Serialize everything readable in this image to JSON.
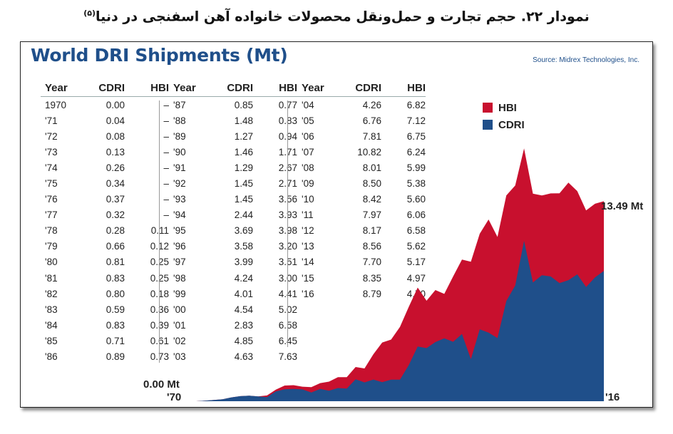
{
  "caption": {
    "text": "نمودار ۲۲. حجم تجارت و حمل‌ونقل محصولات خانواده آهن اسفنجی در دنیا",
    "note": "(۵)"
  },
  "title": "World DRI Shipments (Mt)",
  "source": "Source: Midrex Technologies, Inc.",
  "table": {
    "headers": {
      "year": "Year",
      "cdri": "CDRI",
      "hbi": "HBI"
    },
    "rows": [
      [
        "1970",
        "0.00",
        "–"
      ],
      [
        "'71",
        "0.04",
        "–"
      ],
      [
        "'72",
        "0.08",
        "–"
      ],
      [
        "'73",
        "0.13",
        "–"
      ],
      [
        "'74",
        "0.26",
        "–"
      ],
      [
        "'75",
        "0.34",
        "–"
      ],
      [
        "'76",
        "0.37",
        "–"
      ],
      [
        "'77",
        "0.32",
        "–"
      ],
      [
        "'78",
        "0.28",
        "0.11"
      ],
      [
        "'79",
        "0.66",
        "0.12"
      ],
      [
        "'80",
        "0.81",
        "0.25"
      ],
      [
        "'81",
        "0.83",
        "0.25"
      ],
      [
        "'82",
        "0.80",
        "0.18"
      ],
      [
        "'83",
        "0.59",
        "0.36"
      ],
      [
        "'84",
        "0.83",
        "0.39"
      ],
      [
        "'85",
        "0.71",
        "0.61"
      ],
      [
        "'86",
        "0.89",
        "0.73"
      ],
      [
        "'87",
        "0.85",
        "0.77"
      ],
      [
        "'88",
        "1.48",
        "0.83"
      ],
      [
        "'89",
        "1.27",
        "0.94"
      ],
      [
        "'90",
        "1.46",
        "1.71"
      ],
      [
        "'91",
        "1.29",
        "2.67"
      ],
      [
        "'92",
        "1.45",
        "2.71"
      ],
      [
        "'93",
        "1.45",
        "3.56"
      ],
      [
        "'94",
        "2.44",
        "3.93"
      ],
      [
        "'95",
        "3.69",
        "3.98"
      ],
      [
        "'96",
        "3.58",
        "3.20"
      ],
      [
        "'97",
        "3.99",
        "3.51"
      ],
      [
        "'98",
        "4.24",
        "3.00"
      ],
      [
        "'99",
        "4.01",
        "4.41"
      ],
      [
        "'00",
        "4.54",
        "5.02"
      ],
      [
        "'01",
        "2.83",
        "6.58"
      ],
      [
        "'02",
        "4.85",
        "6.45"
      ],
      [
        "'03",
        "4.63",
        "7.63"
      ],
      [
        "'04",
        "4.26",
        "6.82"
      ],
      [
        "'05",
        "6.76",
        "7.12"
      ],
      [
        "'06",
        "7.81",
        "6.75"
      ],
      [
        "'07",
        "10.82",
        "6.24"
      ],
      [
        "'08",
        "8.01",
        "5.99"
      ],
      [
        "'09",
        "8.50",
        "5.38"
      ],
      [
        "'10",
        "8.42",
        "5.60"
      ],
      [
        "'11",
        "7.97",
        "6.06"
      ],
      [
        "'12",
        "8.17",
        "6.58"
      ],
      [
        "'13",
        "8.56",
        "5.62"
      ],
      [
        "'14",
        "7.70",
        "5.17"
      ],
      [
        "'15",
        "8.35",
        "4.97"
      ],
      [
        "'16",
        "8.79",
        "4.70"
      ]
    ]
  },
  "legend": [
    {
      "label": "HBI",
      "color": "#c8102e"
    },
    {
      "label": "CDRI",
      "color": "#1f4f8a"
    }
  ],
  "annotations": {
    "start_value": "0.00 Mt",
    "start_year": "'70",
    "end_value": "13.49 Mt",
    "end_year": "'16"
  },
  "chart_data": {
    "type": "area",
    "stacked": true,
    "x": [
      1970,
      1971,
      1972,
      1973,
      1974,
      1975,
      1976,
      1977,
      1978,
      1979,
      1980,
      1981,
      1982,
      1983,
      1984,
      1985,
      1986,
      1987,
      1988,
      1989,
      1990,
      1991,
      1992,
      1993,
      1994,
      1995,
      1996,
      1997,
      1998,
      1999,
      2000,
      2001,
      2002,
      2003,
      2004,
      2005,
      2006,
      2007,
      2008,
      2009,
      2010,
      2011,
      2012,
      2013,
      2014,
      2015,
      2016
    ],
    "series": [
      {
        "name": "CDRI",
        "color": "#1f4f8a",
        "values": [
          0.0,
          0.04,
          0.08,
          0.13,
          0.26,
          0.34,
          0.37,
          0.32,
          0.28,
          0.66,
          0.81,
          0.83,
          0.8,
          0.59,
          0.83,
          0.71,
          0.89,
          0.85,
          1.48,
          1.27,
          1.46,
          1.29,
          1.45,
          1.45,
          2.44,
          3.69,
          3.58,
          3.99,
          4.24,
          4.01,
          4.54,
          2.83,
          4.85,
          4.63,
          4.26,
          6.76,
          7.81,
          10.82,
          8.01,
          8.5,
          8.42,
          7.97,
          8.17,
          8.56,
          7.7,
          8.35,
          8.79
        ]
      },
      {
        "name": "HBI",
        "color": "#c8102e",
        "values": [
          0,
          0,
          0,
          0,
          0,
          0,
          0,
          0,
          0.11,
          0.12,
          0.25,
          0.25,
          0.18,
          0.36,
          0.39,
          0.61,
          0.73,
          0.77,
          0.83,
          0.94,
          1.71,
          2.67,
          2.71,
          3.56,
          3.93,
          3.98,
          3.2,
          3.51,
          3.0,
          4.41,
          5.02,
          6.58,
          6.45,
          7.63,
          6.82,
          7.12,
          6.75,
          6.24,
          5.99,
          5.38,
          5.6,
          6.06,
          6.58,
          5.62,
          5.17,
          4.97,
          4.7
        ]
      }
    ],
    "xlim": [
      1970,
      2016
    ],
    "ylim": [
      0,
      17.5
    ],
    "grid": false,
    "legend_position": "top-right"
  }
}
